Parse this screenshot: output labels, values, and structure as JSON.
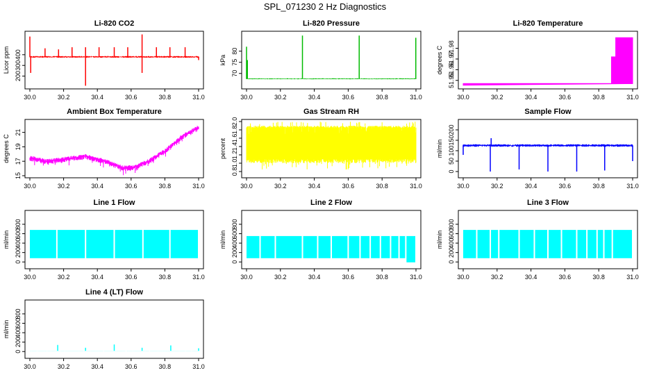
{
  "page": {
    "title": "SPL_071230  2 Hz Diagnostics"
  },
  "chart_data": [
    {
      "type": "line",
      "title": "Li-820 CO2",
      "xlabel": "",
      "ylabel": "Licor ppm",
      "color": "#ff0000",
      "xlim": [
        30.0,
        31.0
      ],
      "ylim": [
        100,
        600
      ],
      "xticks": [
        "30.0",
        "30.2",
        "30.4",
        "30.6",
        "30.8",
        "31.0"
      ],
      "yticks": [
        "200",
        "300",
        "400"
      ],
      "ytick_values": [
        200,
        300,
        400
      ],
      "baseline": 380,
      "noise": 8,
      "spikes": [
        [
          30.0,
          570
        ],
        [
          30.005,
          230
        ],
        [
          30.09,
          460
        ],
        [
          30.17,
          450
        ],
        [
          30.25,
          470
        ],
        [
          30.33,
          110
        ],
        [
          30.33,
          470
        ],
        [
          30.41,
          470
        ],
        [
          30.5,
          470
        ],
        [
          30.58,
          470
        ],
        [
          30.665,
          590
        ],
        [
          30.665,
          230
        ],
        [
          30.75,
          470
        ],
        [
          30.83,
          470
        ],
        [
          30.92,
          470
        ],
        [
          31.0,
          350
        ]
      ]
    },
    {
      "type": "line",
      "title": "Li-820 Pressure",
      "xlabel": "",
      "ylabel": "kPa",
      "color": "#00bb00",
      "xlim": [
        30.0,
        31.0
      ],
      "ylim": [
        64,
        88
      ],
      "xticks": [
        "30.0",
        "30.2",
        "30.4",
        "30.6",
        "30.8",
        "31.0"
      ],
      "yticks": [
        "70",
        "75",
        "80"
      ],
      "ytick_values": [
        70,
        75,
        80
      ],
      "baseline": 67.6,
      "noise": 0.2,
      "spikes": [
        [
          30.0,
          82
        ],
        [
          30.005,
          76
        ],
        [
          30.33,
          87
        ],
        [
          30.665,
          87
        ],
        [
          30.999,
          86
        ]
      ]
    },
    {
      "type": "area",
      "title": "Li-820 Temperature",
      "xlabel": "",
      "ylabel": "degrees C",
      "color": "#ff00ff",
      "xlim": [
        30.0,
        31.0
      ],
      "ylim": [
        51.944,
        51.994
      ],
      "xticks": [
        "30.0",
        "30.2",
        "30.4",
        "30.6",
        "30.8",
        "31.0"
      ],
      "yticks": [
        "51.95",
        "51.96",
        "51.97",
        "51.98"
      ],
      "ytick_values": [
        51.95,
        51.96,
        51.97,
        51.98
      ],
      "baseline": 51.947,
      "steps": [
        [
          30.0,
          51.947
        ],
        [
          30.875,
          51.947
        ],
        [
          30.875,
          51.972
        ],
        [
          30.9,
          51.972
        ],
        [
          30.9,
          51.99
        ],
        [
          31.0,
          51.99
        ]
      ]
    },
    {
      "type": "line",
      "title": "Ambient Box Temperature",
      "xlabel": "",
      "ylabel": "degrees C",
      "color": "#ff00ff",
      "xlim": [
        30.0,
        31.0
      ],
      "ylim": [
        15,
        22.5
      ],
      "xticks": [
        "30.0",
        "30.2",
        "30.4",
        "30.6",
        "30.8",
        "31.0"
      ],
      "yticks": [
        "15",
        "17",
        "19",
        "21"
      ],
      "ytick_values": [
        15,
        17,
        19,
        21
      ],
      "curve": [
        [
          30.0,
          17.5
        ],
        [
          30.1,
          17.0
        ],
        [
          30.2,
          17.3
        ],
        [
          30.33,
          17.7
        ],
        [
          30.45,
          17.0
        ],
        [
          30.55,
          16.1
        ],
        [
          30.62,
          16.2
        ],
        [
          30.7,
          17.0
        ],
        [
          30.8,
          18.4
        ],
        [
          30.9,
          20.4
        ],
        [
          31.0,
          21.7
        ]
      ],
      "noise": 0.5
    },
    {
      "type": "line",
      "title": "Gas Stream RH",
      "xlabel": "",
      "ylabel": "percent",
      "color": "#ffff00",
      "xlim": [
        30.0,
        31.0
      ],
      "ylim": [
        0.7,
        2.0
      ],
      "xticks": [
        "30.0",
        "30.2",
        "30.4",
        "30.6",
        "30.8",
        "31.0"
      ],
      "yticks": [
        "0.8",
        "1.0",
        "1.2",
        "1.4",
        "1.6",
        "1.8",
        "2.0"
      ],
      "ytick_values": [
        0.8,
        1.0,
        1.2,
        1.4,
        1.6,
        1.8,
        2.0
      ],
      "band": [
        1.0,
        1.9
      ]
    },
    {
      "type": "line",
      "title": "Sample Flow",
      "xlabel": "",
      "ylabel": "ml/min",
      "color": "#0000ff",
      "xlim": [
        30.0,
        31.0
      ],
      "ylim": [
        -20,
        240
      ],
      "xticks": [
        "30.0",
        "30.2",
        "30.4",
        "30.6",
        "30.8",
        "31.0"
      ],
      "yticks": [
        "0",
        "50",
        "100",
        "150",
        "200"
      ],
      "ytick_values": [
        0,
        50,
        100,
        150,
        200
      ],
      "baseline": 125,
      "noise": 6,
      "spikes": [
        [
          30.0,
          80
        ],
        [
          30.16,
          0
        ],
        [
          30.165,
          160
        ],
        [
          30.33,
          10
        ],
        [
          30.5,
          0
        ],
        [
          30.67,
          0
        ],
        [
          30.835,
          5
        ],
        [
          31.0,
          50
        ]
      ]
    },
    {
      "type": "area",
      "title": "Line 1 Flow",
      "xlabel": "",
      "ylabel": "ml/min",
      "color": "#00ffff",
      "xlim": [
        30.0,
        31.0
      ],
      "ylim": [
        -100,
        1050
      ],
      "xticks": [
        "30.0",
        "30.2",
        "30.4",
        "30.6",
        "30.8",
        "31.0"
      ],
      "yticks": [
        "0",
        "200",
        "400",
        "600",
        "800"
      ],
      "ytick_values": [
        0,
        200,
        400,
        600,
        800
      ],
      "band": [
        80,
        680
      ],
      "gaps": [
        30.16,
        30.33,
        30.5,
        30.67,
        30.83
      ]
    },
    {
      "type": "area",
      "title": "Line 2 Flow",
      "xlabel": "",
      "ylabel": "ml/min",
      "color": "#00ffff",
      "xlim": [
        30.0,
        31.0
      ],
      "ylim": [
        -100,
        1050
      ],
      "xticks": [
        "30.0",
        "30.2",
        "30.4",
        "30.6",
        "30.8",
        "31.0"
      ],
      "yticks": [
        "0",
        "200",
        "400",
        "600",
        "800"
      ],
      "ytick_values": [
        0,
        200,
        400,
        600,
        800
      ],
      "band": [
        80,
        550
      ],
      "gaps": [
        30.08,
        30.17,
        30.33,
        30.42,
        30.5,
        30.6,
        30.67,
        30.73,
        30.79,
        30.85,
        30.9,
        30.94
      ]
    },
    {
      "type": "area",
      "title": "Line 3 Flow",
      "xlabel": "",
      "ylabel": "ml/min",
      "color": "#00ffff",
      "xlim": [
        30.0,
        31.0
      ],
      "ylim": [
        -100,
        1050
      ],
      "xticks": [
        "30.0",
        "30.2",
        "30.4",
        "30.6",
        "30.8",
        "31.0"
      ],
      "yticks": [
        "0",
        "200",
        "400",
        "600",
        "800"
      ],
      "ytick_values": [
        0,
        200,
        400,
        600,
        800
      ],
      "band": [
        80,
        680
      ],
      "gaps": [
        30.08,
        30.16,
        30.21,
        30.33,
        30.42,
        30.5,
        30.58,
        30.67,
        30.73,
        30.79,
        30.83,
        30.88
      ]
    },
    {
      "type": "line",
      "title": "Line 4 (LT) Flow",
      "xlabel": "",
      "ylabel": "ml/min",
      "color": "#00ffff",
      "xlim": [
        30.0,
        31.0
      ],
      "ylim": [
        -100,
        1050
      ],
      "xticks": [
        "30.0",
        "30.2",
        "30.4",
        "30.6",
        "30.8",
        "31.0"
      ],
      "yticks": [
        "0",
        "200",
        "400",
        "600",
        "800"
      ],
      "ytick_values": [
        0,
        200,
        400,
        600,
        800
      ],
      "baseline": 15,
      "noise": 2,
      "spikes": [
        [
          30.165,
          140
        ],
        [
          30.33,
          80
        ],
        [
          30.5,
          150
        ],
        [
          30.665,
          80
        ],
        [
          30.835,
          130
        ],
        [
          31.0,
          70
        ]
      ]
    }
  ]
}
